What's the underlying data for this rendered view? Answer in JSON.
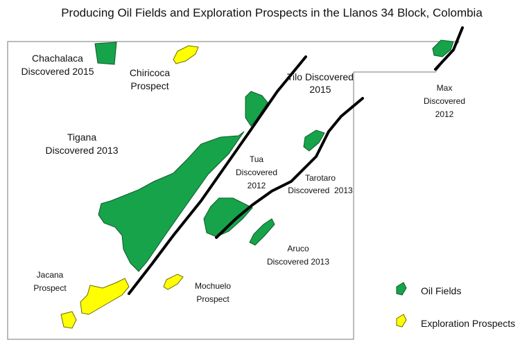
{
  "title": "Producing Oil Fields and Exploration Prospects in the Llanos 34 Block, Colombia",
  "labels": [
    {
      "lines": [
        "Chachalaca",
        "Discovered 2015"
      ]
    },
    {
      "lines": [
        "Chiricoca",
        "Prospect"
      ]
    },
    {
      "lines": [
        "Tilo Discovered",
        "2015"
      ]
    },
    {
      "lines": [
        "Max",
        "Discovered",
        "2012"
      ]
    },
    {
      "lines": [
        "Tigana",
        "Discovered 2013"
      ]
    },
    {
      "lines": [
        "Tua",
        "Discovered",
        "2012"
      ]
    },
    {
      "lines": [
        "Tarotaro",
        "Discovered  2013"
      ]
    },
    {
      "lines": [
        "Aruco",
        "Discovered 2013"
      ]
    },
    {
      "lines": [
        "Jacana",
        "Prospect"
      ]
    },
    {
      "lines": [
        "Mochuelo",
        "Prospect"
      ]
    }
  ],
  "legend": {
    "oil_fields": "Oil Fields",
    "exploration_prospects": "Exploration Prospects"
  }
}
